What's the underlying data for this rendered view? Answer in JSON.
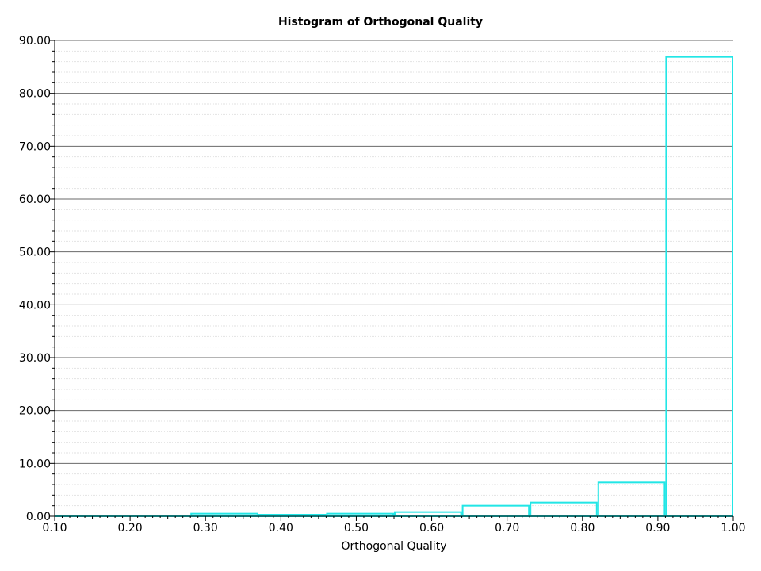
{
  "chart_data": {
    "type": "bar",
    "title": "Histogram of Orthogonal Quality",
    "xlabel": "Orthogonal Quality",
    "ylabel": "",
    "xlim": [
      0.1,
      1.0
    ],
    "ylim": [
      0,
      90
    ],
    "x_ticks": [
      "0.10",
      "0.20",
      "0.30",
      "0.40",
      "0.50",
      "0.60",
      "0.70",
      "0.80",
      "0.90",
      "1.00"
    ],
    "y_ticks": [
      "0.00",
      "10.00",
      "20.00",
      "30.00",
      "40.00",
      "50.00",
      "60.00",
      "70.00",
      "80.00",
      "90.00"
    ],
    "grid": true,
    "bin_edges": [
      0.1,
      0.19,
      0.28,
      0.37,
      0.46,
      0.55,
      0.64,
      0.73,
      0.82,
      0.91,
      1.0
    ],
    "values": [
      0.0,
      0.0,
      0.5,
      0.3,
      0.5,
      0.8,
      2.0,
      2.6,
      6.4,
      86.9
    ],
    "color": "#22e6e6"
  }
}
